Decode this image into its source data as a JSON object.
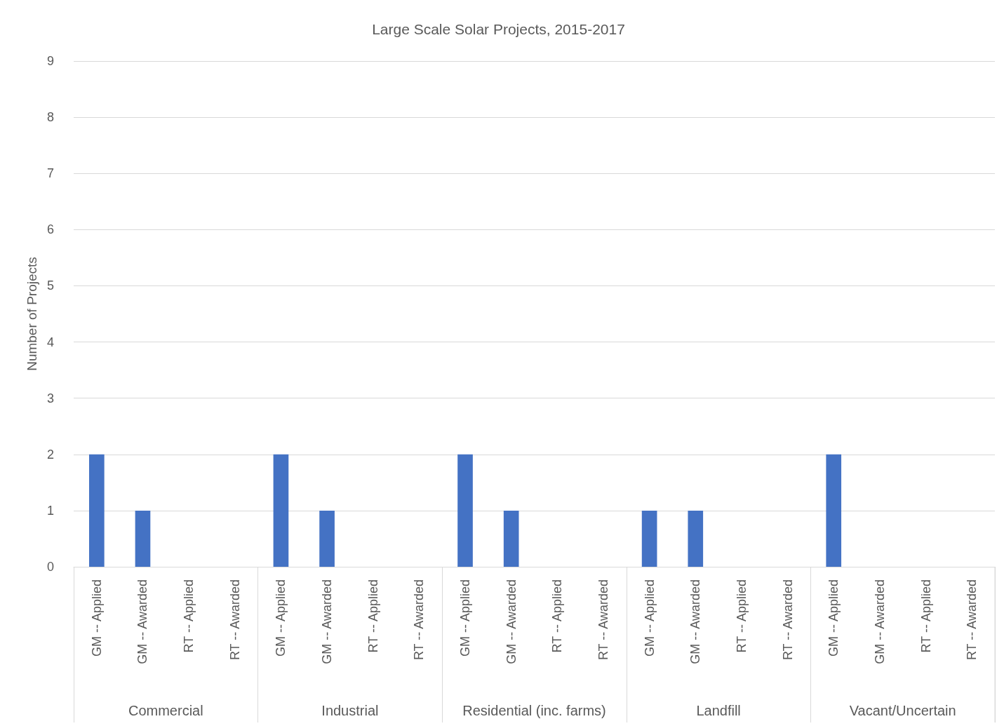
{
  "chart_data": {
    "type": "bar",
    "title": "Large Scale Solar Projects, 2015-2017",
    "ylabel": "Number of Projects",
    "categories": [
      "GM -- Applied",
      "GM -- Awarded",
      "RT -- Applied",
      "RT -- Awarded",
      "GM -- Applied",
      "GM -- Awarded",
      "RT -- Applied",
      "RT -- Awarded",
      "GM -- Applied",
      "GM -- Awarded",
      "RT -- Applied",
      "RT -- Awarded",
      "GM -- Applied",
      "GM -- Awarded",
      "RT -- Applied",
      "RT -- Awarded",
      "GM -- Applied",
      "GM -- Awarded",
      "RT -- Applied",
      "RT -- Awarded"
    ],
    "values": [
      2,
      1,
      0,
      0,
      2,
      1,
      0,
      0,
      2,
      1,
      0,
      0,
      1,
      1,
      0,
      0,
      2,
      0,
      0,
      0
    ],
    "color": "#4472c4",
    "annotations": [
      "Commercial",
      "Industrial",
      "Residential (inc. farms)",
      "Landfill",
      "Vacant/Uncertain"
    ],
    "ylim": [
      0,
      9
    ],
    "yticks": [
      0,
      1,
      2,
      3,
      4,
      5,
      6,
      7,
      8,
      9
    ],
    "grid": "y"
  }
}
